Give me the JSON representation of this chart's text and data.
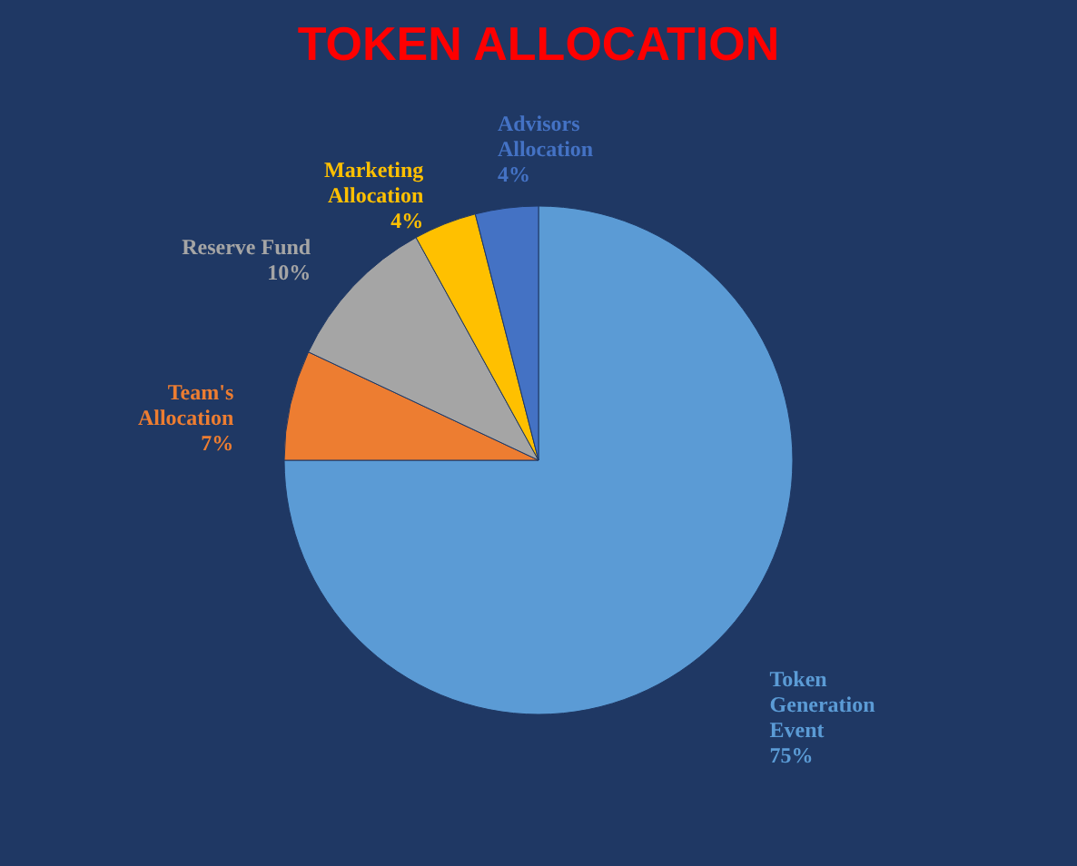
{
  "chart_data": {
    "type": "pie",
    "title": "TOKEN ALLOCATION",
    "categories": [
      "Token Generation Event",
      "Team's Allocation",
      "Reserve Fund",
      "Marketing Allocation",
      "Advisors Allocation"
    ],
    "values": [
      75,
      7,
      10,
      4,
      4
    ],
    "value_labels": [
      "75%",
      "7%",
      "10%",
      "4%",
      "4%"
    ],
    "colors": [
      "#5b9bd5",
      "#ed7d31",
      "#a5a5a5",
      "#ffc000",
      "#4472c4"
    ],
    "legend": false
  }
}
